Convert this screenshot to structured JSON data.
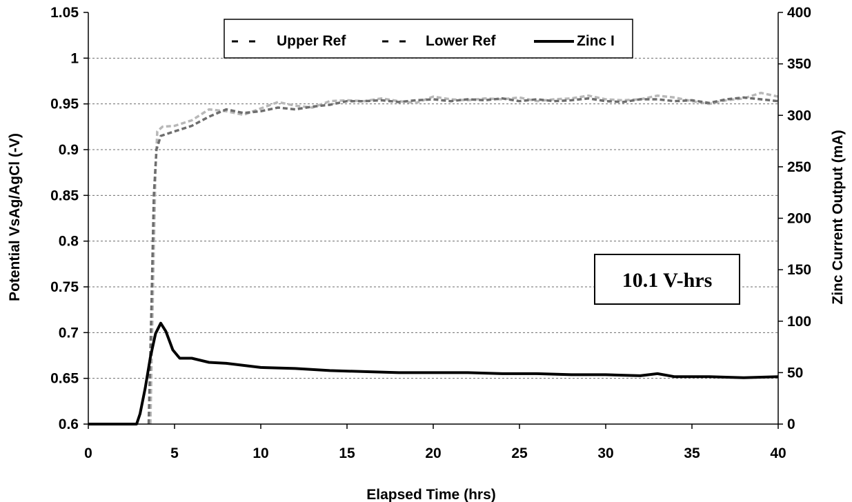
{
  "chart_data": {
    "type": "line",
    "xlabel": "Elapsed Time (hrs)",
    "ylabel": "Potential VsAg/AgCl (-V)",
    "y2label": "Zinc Current Output (mA)",
    "xlim": [
      0,
      40
    ],
    "ylim": [
      0.6,
      1.05
    ],
    "y2lim": [
      0,
      400
    ],
    "xticks": [
      "0",
      "5",
      "10",
      "15",
      "20",
      "25",
      "30",
      "35",
      "40"
    ],
    "yticks": [
      "0.6",
      "0.65",
      "0.7",
      "0.75",
      "0.8",
      "0.85",
      "0.9",
      "0.95",
      "1",
      "1.05"
    ],
    "y2ticks": [
      "0",
      "50",
      "100",
      "150",
      "200",
      "250",
      "300",
      "350",
      "400"
    ],
    "grid": "horizontal dashed",
    "legend_position": "top",
    "annotation": "10.1 V-hrs",
    "series": [
      {
        "name": "Upper Ref",
        "axis": "left",
        "color": "#b8b8b8",
        "style": "dashed",
        "points": [
          [
            3.6,
            0.6
          ],
          [
            3.75,
            0.75
          ],
          [
            3.9,
            0.88
          ],
          [
            4.0,
            0.92
          ],
          [
            4.3,
            0.925
          ],
          [
            5,
            0.926
          ],
          [
            6,
            0.932
          ],
          [
            7,
            0.944
          ],
          [
            8,
            0.942
          ],
          [
            9,
            0.938
          ],
          [
            10,
            0.945
          ],
          [
            11,
            0.952
          ],
          [
            12,
            0.948
          ],
          [
            13,
            0.946
          ],
          [
            14,
            0.953
          ],
          [
            15,
            0.954
          ],
          [
            16,
            0.953
          ],
          [
            17,
            0.956
          ],
          [
            18,
            0.953
          ],
          [
            19,
            0.951
          ],
          [
            20,
            0.958
          ],
          [
            21,
            0.955
          ],
          [
            22,
            0.954
          ],
          [
            23,
            0.956
          ],
          [
            24,
            0.955
          ],
          [
            25,
            0.957
          ],
          [
            26,
            0.953
          ],
          [
            27,
            0.955
          ],
          [
            28,
            0.956
          ],
          [
            29,
            0.959
          ],
          [
            30,
            0.955
          ],
          [
            31,
            0.954
          ],
          [
            32,
            0.955
          ],
          [
            33,
            0.959
          ],
          [
            34,
            0.957
          ],
          [
            35,
            0.953
          ],
          [
            36,
            0.95
          ],
          [
            37,
            0.954
          ],
          [
            38,
            0.956
          ],
          [
            39,
            0.962
          ],
          [
            40,
            0.958
          ]
        ]
      },
      {
        "name": "Lower Ref",
        "axis": "left",
        "color": "#6e6e6e",
        "style": "dashed",
        "points": [
          [
            3.5,
            0.6
          ],
          [
            3.65,
            0.72
          ],
          [
            3.8,
            0.85
          ],
          [
            3.95,
            0.9
          ],
          [
            4.2,
            0.915
          ],
          [
            5,
            0.92
          ],
          [
            6,
            0.926
          ],
          [
            7,
            0.936
          ],
          [
            8,
            0.944
          ],
          [
            9,
            0.94
          ],
          [
            10,
            0.942
          ],
          [
            11,
            0.946
          ],
          [
            12,
            0.944
          ],
          [
            13,
            0.947
          ],
          [
            14,
            0.949
          ],
          [
            15,
            0.953
          ],
          [
            16,
            0.953
          ],
          [
            17,
            0.954
          ],
          [
            18,
            0.952
          ],
          [
            19,
            0.954
          ],
          [
            20,
            0.955
          ],
          [
            21,
            0.953
          ],
          [
            22,
            0.955
          ],
          [
            23,
            0.954
          ],
          [
            24,
            0.956
          ],
          [
            25,
            0.953
          ],
          [
            26,
            0.955
          ],
          [
            27,
            0.953
          ],
          [
            28,
            0.954
          ],
          [
            29,
            0.956
          ],
          [
            30,
            0.953
          ],
          [
            31,
            0.952
          ],
          [
            32,
            0.955
          ],
          [
            33,
            0.955
          ],
          [
            34,
            0.953
          ],
          [
            35,
            0.954
          ],
          [
            36,
            0.951
          ],
          [
            37,
            0.955
          ],
          [
            38,
            0.957
          ],
          [
            39,
            0.955
          ],
          [
            40,
            0.953
          ]
        ]
      },
      {
        "name": "Zinc I",
        "axis": "right",
        "color": "#000000",
        "style": "solid",
        "points": [
          [
            0,
            0
          ],
          [
            1,
            0
          ],
          [
            2,
            0
          ],
          [
            2.8,
            0
          ],
          [
            3.0,
            10
          ],
          [
            3.3,
            35
          ],
          [
            3.6,
            65
          ],
          [
            3.9,
            88
          ],
          [
            4.2,
            98
          ],
          [
            4.5,
            90
          ],
          [
            4.9,
            72
          ],
          [
            5.3,
            64
          ],
          [
            6,
            64
          ],
          [
            7,
            60
          ],
          [
            8,
            59
          ],
          [
            9,
            57
          ],
          [
            10,
            55
          ],
          [
            12,
            54
          ],
          [
            14,
            52
          ],
          [
            16,
            51
          ],
          [
            18,
            50
          ],
          [
            20,
            50
          ],
          [
            22,
            50
          ],
          [
            24,
            49
          ],
          [
            26,
            49
          ],
          [
            28,
            48
          ],
          [
            30,
            48
          ],
          [
            32,
            47
          ],
          [
            33,
            49
          ],
          [
            34,
            46
          ],
          [
            36,
            46
          ],
          [
            38,
            45
          ],
          [
            40,
            46
          ]
        ]
      }
    ]
  }
}
